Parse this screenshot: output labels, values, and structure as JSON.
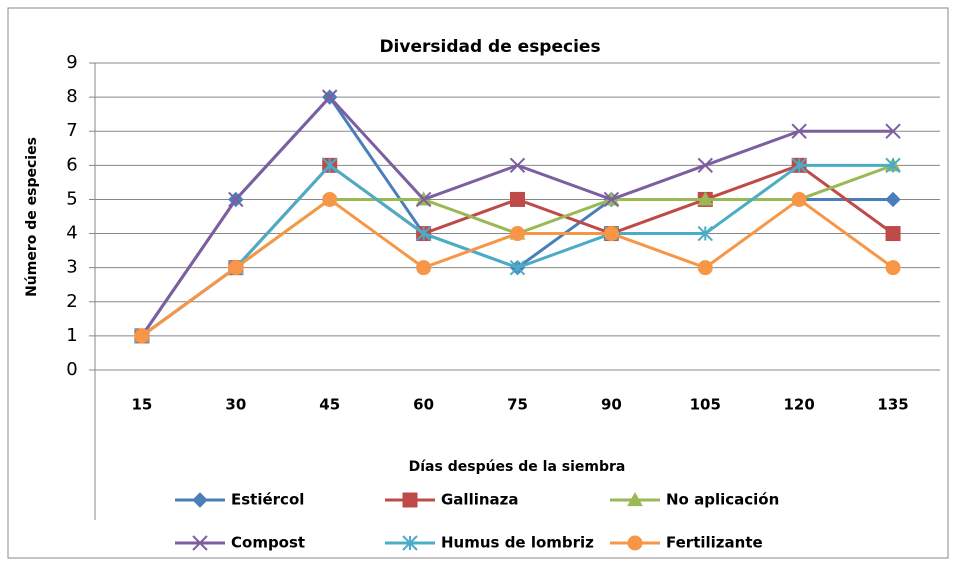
{
  "chart_data": {
    "type": "line",
    "title": "Diversidad de especies",
    "x_label": "Días despúes de la siembra",
    "y_label": "Número de especies",
    "categories": [
      "15",
      "30",
      "45",
      "60",
      "75",
      "90",
      "105",
      "120",
      "135"
    ],
    "ylim": [
      0,
      9
    ],
    "yticks": [
      0,
      1,
      2,
      3,
      4,
      5,
      6,
      7,
      8,
      9
    ],
    "grid": true,
    "series": [
      {
        "name": "Estiércol",
        "color": "#4a7ebb",
        "marker": "diamond",
        "values": [
          1,
          5,
          8,
          4,
          3,
          5,
          5,
          5,
          5
        ]
      },
      {
        "name": "Gallinaza",
        "color": "#be4b48",
        "marker": "square",
        "values": [
          1,
          3,
          6,
          4,
          5,
          4,
          5,
          6,
          4
        ]
      },
      {
        "name": "No aplicación",
        "color": "#98b954",
        "marker": "triangle",
        "values": [
          1,
          3,
          5,
          5,
          4,
          5,
          5,
          5,
          6
        ]
      },
      {
        "name": "Compost",
        "color": "#7d5fa0",
        "marker": "x",
        "values": [
          1,
          5,
          8,
          5,
          6,
          5,
          6,
          7,
          7
        ]
      },
      {
        "name": "Humus de lombriz",
        "color": "#4bacc6",
        "marker": "star",
        "values": [
          1,
          3,
          6,
          4,
          3,
          4,
          4,
          6,
          6
        ]
      },
      {
        "name": "Fertilizante",
        "color": "#f79646",
        "marker": "circle",
        "values": [
          1,
          3,
          5,
          3,
          4,
          4,
          3,
          5,
          3
        ]
      }
    ]
  }
}
